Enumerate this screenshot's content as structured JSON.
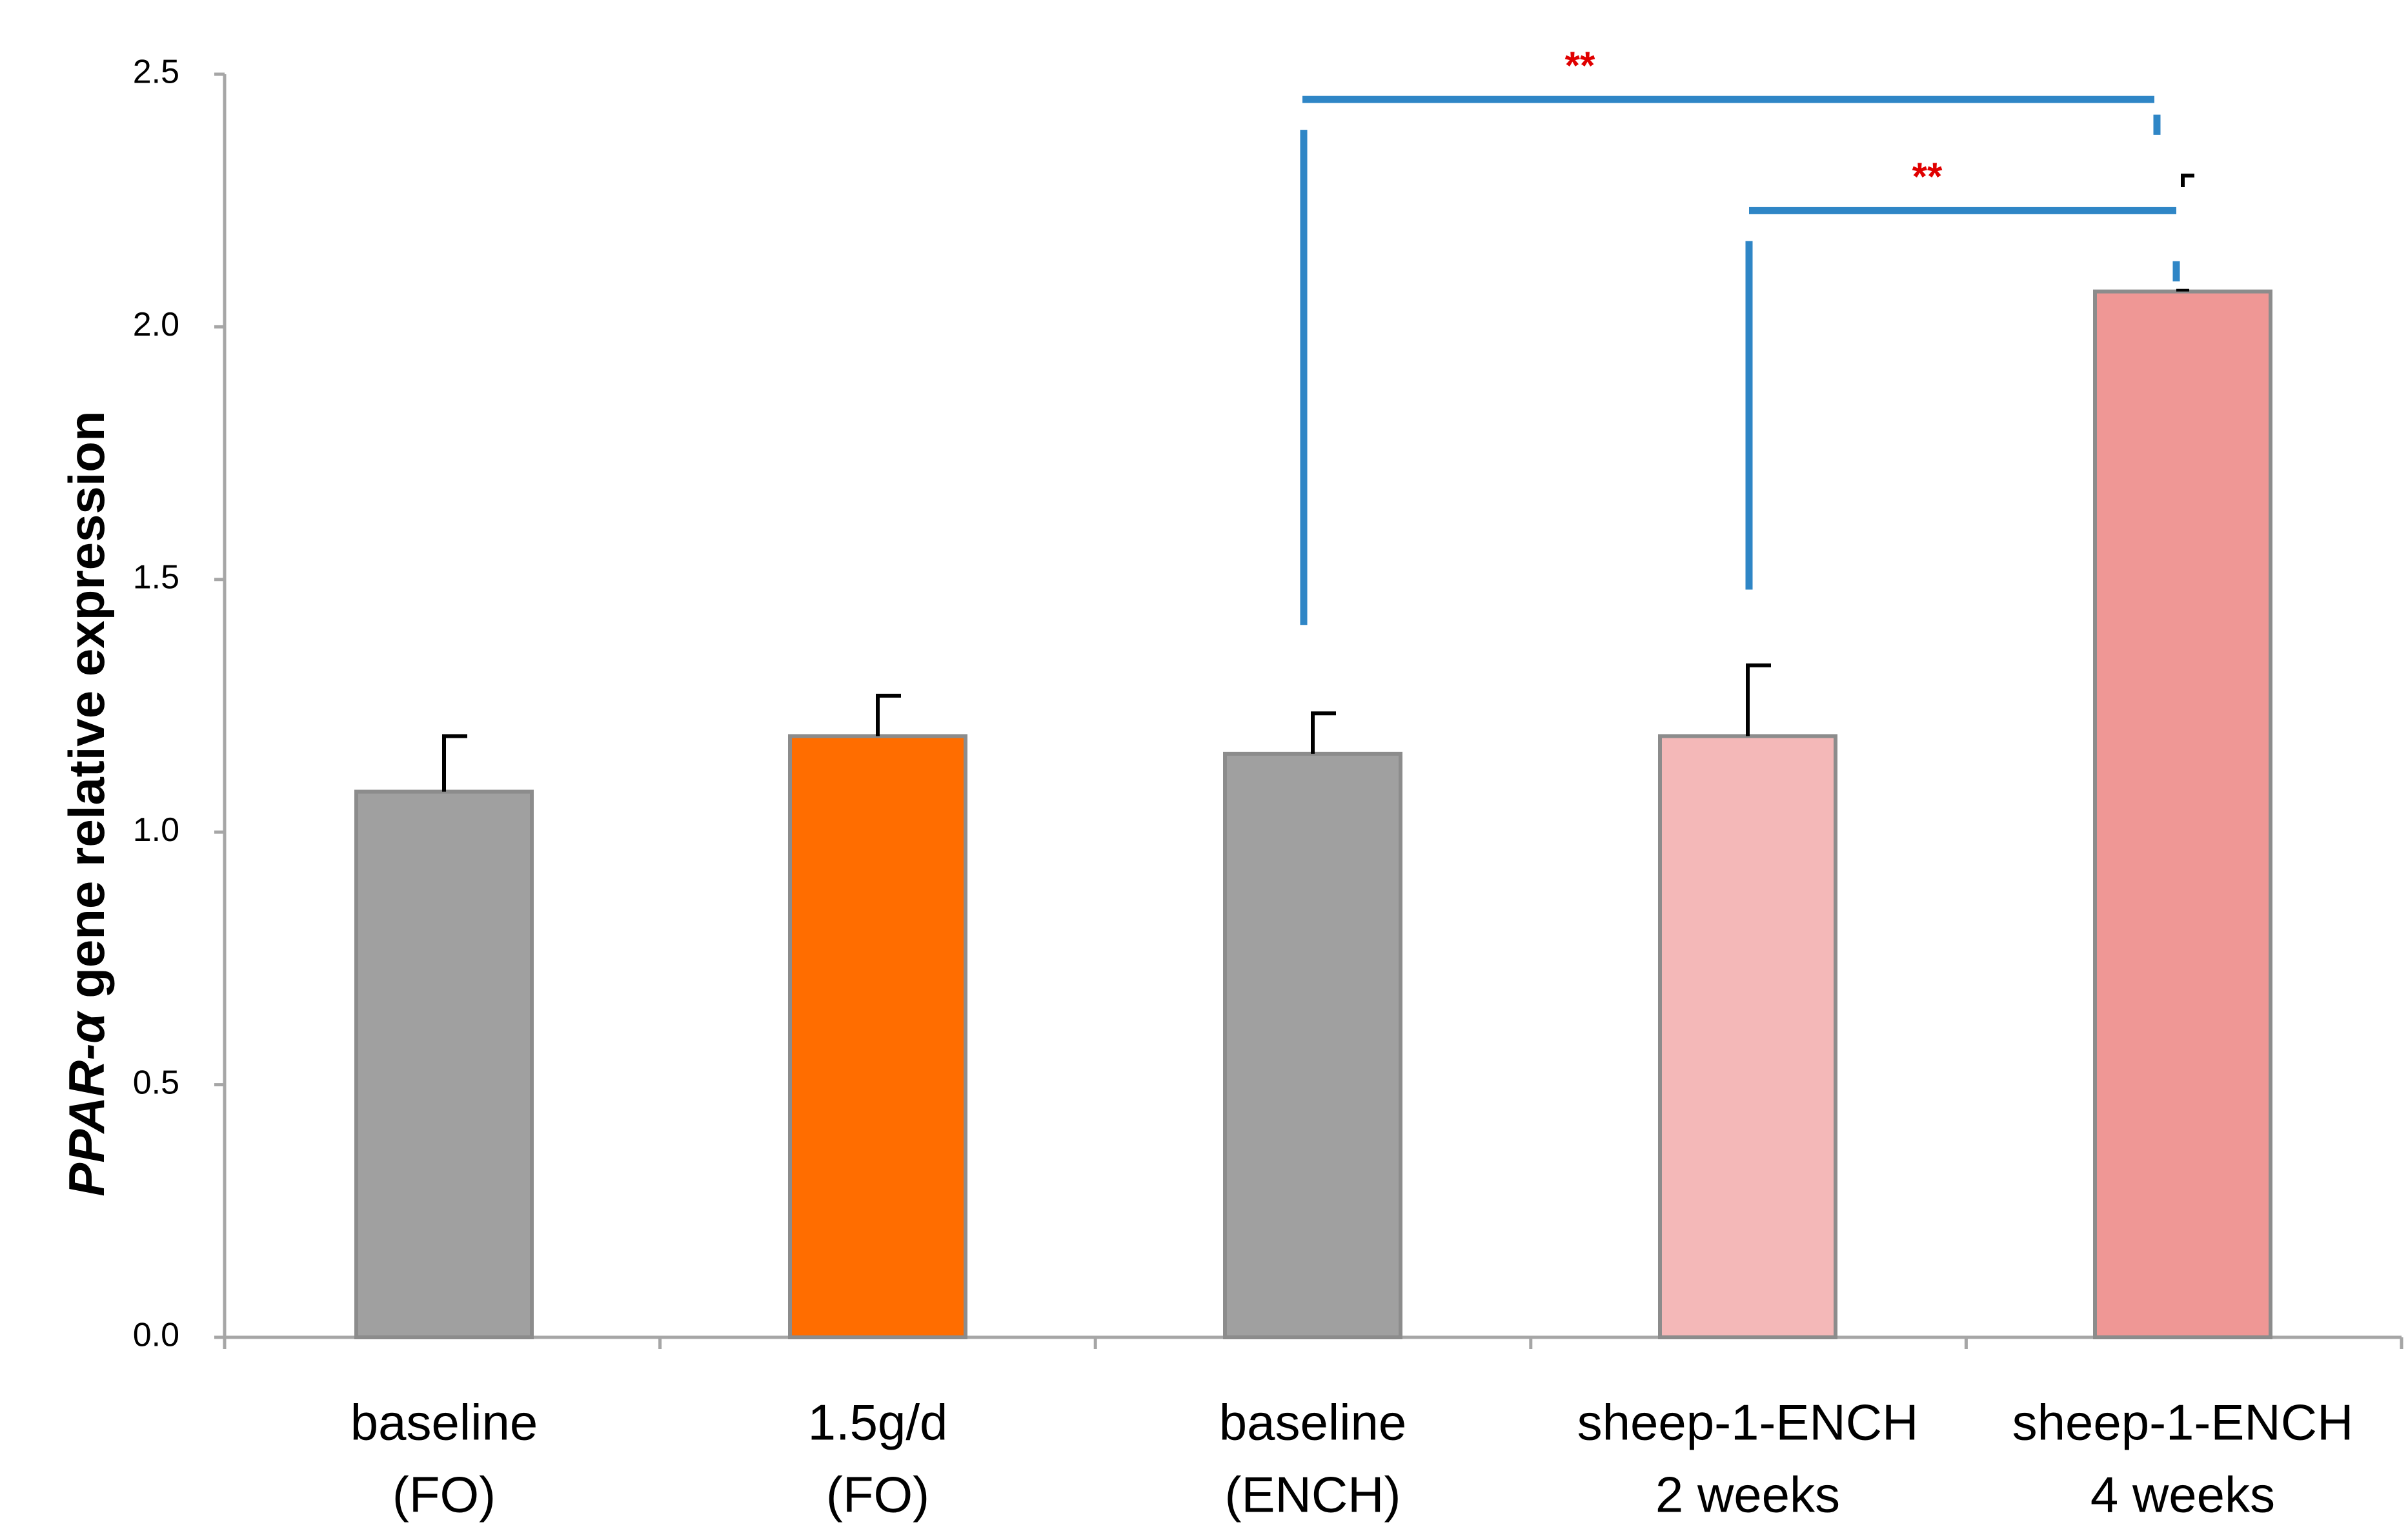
{
  "chart_data": {
    "type": "bar",
    "title": "",
    "xlabel": "",
    "ylabel_italic": "PPAR-α",
    "ylabel_rest": " gene relative expression",
    "ylim": [
      0,
      2.5
    ],
    "yticks": [
      0.0,
      0.5,
      1.0,
      1.5,
      2.0,
      2.5
    ],
    "ytick_labels": [
      "0.0",
      "0.5",
      "1.0",
      "1.5",
      "2.0",
      "2.5"
    ],
    "grid": false,
    "categories": [
      [
        "baseline",
        "(FO)"
      ],
      [
        "1.5g/d",
        "(FO)"
      ],
      [
        "baseline",
        "(ENCH)"
      ],
      [
        "sheep-1-ENCH",
        "2 weeks"
      ],
      [
        "sheep-1-ENCH",
        "4 weeks"
      ]
    ],
    "values": [
      1.08,
      1.19,
      1.155,
      1.19,
      2.07
    ],
    "error": [
      0.11,
      0.08,
      0.08,
      0.14,
      0.0
    ],
    "colors": [
      "#a0a0a0",
      "#ff6d00",
      "#a0a0a0",
      "#f4b8b8",
      "#ef9795"
    ],
    "bar_edge_color": "#8c8c8c",
    "errorbar_color": "#000000",
    "axis_color": "#a6a6a6",
    "significance": [
      {
        "from": 2,
        "to": 4,
        "label": "**",
        "color": "#e00000",
        "bracket_color": "#2f86c6",
        "line_y": 2.45,
        "left_drop": [
          1.41,
          2.39
        ],
        "right_drop": [
          2.38,
          2.42
        ]
      },
      {
        "from": 3,
        "to": 4,
        "label": "**",
        "color": "#e00000",
        "bracket_color": "#2f86c6",
        "line_y": 2.23,
        "left_drop": [
          1.48,
          2.17
        ],
        "right_drop": [
          2.09,
          2.13
        ]
      }
    ]
  }
}
